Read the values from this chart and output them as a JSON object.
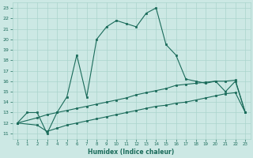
{
  "title": "",
  "xlabel": "Humidex (Indice chaleur)",
  "bg_color": "#cce8e4",
  "grid_color": "#aad4cc",
  "line_color": "#1a6b5a",
  "xlim": [
    -0.5,
    23.5
  ],
  "ylim": [
    10.5,
    23.5
  ],
  "yticks": [
    11,
    12,
    13,
    14,
    15,
    16,
    17,
    18,
    19,
    20,
    21,
    22,
    23
  ],
  "xticks": [
    0,
    1,
    2,
    3,
    4,
    5,
    6,
    7,
    8,
    9,
    10,
    11,
    12,
    13,
    14,
    15,
    16,
    17,
    18,
    19,
    20,
    21,
    22,
    23
  ],
  "line1_x": [
    0,
    1,
    2,
    3,
    4,
    5,
    6,
    7,
    8,
    9,
    10,
    11,
    12,
    13,
    14,
    15,
    16,
    17,
    18,
    19,
    20,
    21,
    22,
    23
  ],
  "line1_y": [
    12,
    13,
    13,
    11,
    13,
    14.5,
    18.5,
    14.5,
    20,
    21.2,
    21.8,
    21.5,
    21.2,
    22.5,
    23,
    19.5,
    18.5,
    16.2,
    16,
    15.8,
    16,
    15,
    16,
    13
  ],
  "line2_x": [
    0,
    2,
    3,
    4,
    5,
    6,
    7,
    8,
    9,
    10,
    11,
    12,
    13,
    14,
    15,
    16,
    17,
    18,
    19,
    20,
    21,
    22,
    23
  ],
  "line2_y": [
    12,
    12.5,
    12.8,
    13,
    13.2,
    13.4,
    13.6,
    13.8,
    14.0,
    14.2,
    14.4,
    14.7,
    14.9,
    15.1,
    15.3,
    15.6,
    15.7,
    15.8,
    15.9,
    16.0,
    16.0,
    16.1,
    13.0
  ],
  "line3_x": [
    0,
    2,
    3,
    4,
    5,
    6,
    7,
    8,
    9,
    10,
    11,
    12,
    13,
    14,
    15,
    16,
    17,
    18,
    19,
    20,
    21,
    22,
    23
  ],
  "line3_y": [
    12,
    11.8,
    11.2,
    11.5,
    11.8,
    12.0,
    12.2,
    12.4,
    12.6,
    12.8,
    13.0,
    13.2,
    13.4,
    13.6,
    13.7,
    13.9,
    14.0,
    14.2,
    14.4,
    14.6,
    14.8,
    14.9,
    13.0
  ]
}
